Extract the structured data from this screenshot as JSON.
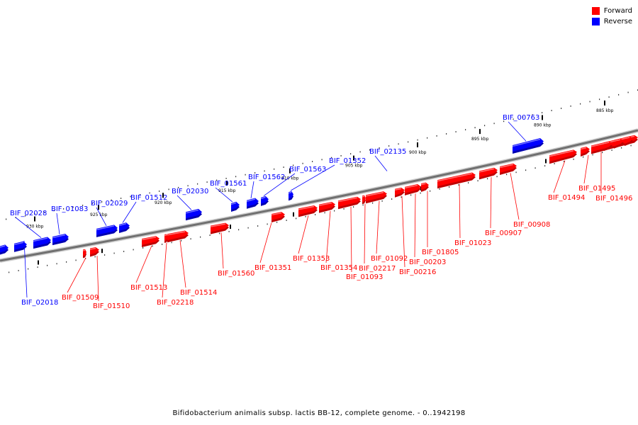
{
  "legend": {
    "forward": {
      "label": "Forward",
      "color": "#ff0000"
    },
    "reverse": {
      "label": "Reverse",
      "color": "#0000ff"
    }
  },
  "caption": "Bifidobacterium animalis subsp. lactis BB-12, complete genome. - 0..1942198",
  "ticks": [
    {
      "kbp": 930,
      "label": "930 kbp"
    },
    {
      "kbp": 925,
      "label": "925 kbp"
    },
    {
      "kbp": 920,
      "label": "920 kbp"
    },
    {
      "kbp": 915,
      "label": "915 kbp"
    },
    {
      "kbp": 910,
      "label": "910 kbp"
    },
    {
      "kbp": 905,
      "label": "905 kbp"
    },
    {
      "kbp": 900,
      "label": "900 kbp"
    },
    {
      "kbp": 895,
      "label": "895 kbp"
    },
    {
      "kbp": 890,
      "label": "890 kbp"
    },
    {
      "kbp": 885,
      "label": "885 kbp"
    }
  ],
  "genes": [
    {
      "name": "BIF_02018",
      "strand": "reverse"
    },
    {
      "name": "BIF_02028",
      "strand": "reverse"
    },
    {
      "name": "BIF_01083",
      "strand": "reverse"
    },
    {
      "name": "BIF_02029",
      "strand": "reverse"
    },
    {
      "name": "BIF_01512",
      "strand": "reverse"
    },
    {
      "name": "BIF_02030",
      "strand": "reverse"
    },
    {
      "name": "BIF_01561",
      "strand": "reverse"
    },
    {
      "name": "BIF_01562",
      "strand": "reverse"
    },
    {
      "name": "BIF_01563",
      "strand": "reverse"
    },
    {
      "name": "BIF_01352",
      "strand": "reverse"
    },
    {
      "name": "BIF_02135",
      "strand": "reverse"
    },
    {
      "name": "BIF_00763",
      "strand": "reverse"
    },
    {
      "name": "BIF_01509",
      "strand": "forward"
    },
    {
      "name": "BIF_01510",
      "strand": "forward"
    },
    {
      "name": "BIF_01513",
      "strand": "forward"
    },
    {
      "name": "BIF_02218",
      "strand": "forward"
    },
    {
      "name": "BIF_01514",
      "strand": "forward"
    },
    {
      "name": "BIF_01560",
      "strand": "forward"
    },
    {
      "name": "BIF_01351",
      "strand": "forward"
    },
    {
      "name": "BIF_01353",
      "strand": "forward"
    },
    {
      "name": "BIF_01354",
      "strand": "forward"
    },
    {
      "name": "BIF_01093",
      "strand": "forward"
    },
    {
      "name": "BIF_02217",
      "strand": "forward"
    },
    {
      "name": "BIF_01092",
      "strand": "forward"
    },
    {
      "name": "BIF_00216",
      "strand": "forward"
    },
    {
      "name": "BIF_00203",
      "strand": "forward"
    },
    {
      "name": "BIF_01805",
      "strand": "forward"
    },
    {
      "name": "BIF_01023",
      "strand": "forward"
    },
    {
      "name": "BIF_00907",
      "strand": "forward"
    },
    {
      "name": "BIF_00908",
      "strand": "forward"
    },
    {
      "name": "BIF_01494",
      "strand": "forward"
    },
    {
      "name": "BIF_01495",
      "strand": "forward"
    },
    {
      "name": "BIF_01496",
      "strand": "forward"
    }
  ]
}
